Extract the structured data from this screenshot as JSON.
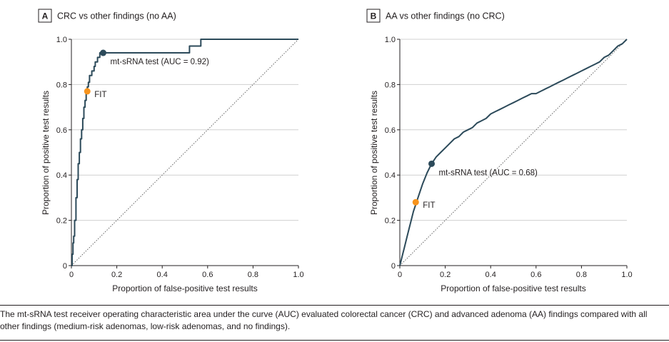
{
  "figure": {
    "caption": "The mt-sRNA test receiver operating characteristic area under the curve (AUC) evaluated colorectal cancer (CRC) and advanced adenoma (AA) findings compared with all other findings (medium-risk adenomas, low-risk adenomas, and no findings)."
  },
  "colors": {
    "roc_line": "#2c4a5a",
    "mt_srna_point": "#2c4a5a",
    "fit_point": "#f7941d",
    "diagonal": "#555555",
    "grid": "#d0d0d0"
  },
  "chart_data": [
    {
      "type": "line",
      "panel_letter": "A",
      "title": "CRC vs other findings (no AA)",
      "xlabel": "Proportion of false-positive test results",
      "ylabel": "Proportion of positive test results",
      "xlim": [
        0,
        1
      ],
      "ylim": [
        0,
        1
      ],
      "x_ticks": [
        "0",
        "0.2",
        "0.4",
        "0.6",
        "0.8",
        "1.0"
      ],
      "y_ticks": [
        "0",
        "0.2",
        "0.4",
        "0.6",
        "0.8",
        "1.0"
      ],
      "grid": "horizontal",
      "reference_line": "diagonal",
      "series": [
        {
          "name": "mt-sRNA test",
          "step": true,
          "x": [
            0,
            0.003,
            0.003,
            0.007,
            0.007,
            0.01,
            0.01,
            0.014,
            0.014,
            0.02,
            0.02,
            0.025,
            0.025,
            0.03,
            0.03,
            0.035,
            0.035,
            0.04,
            0.04,
            0.045,
            0.045,
            0.05,
            0.05,
            0.055,
            0.055,
            0.06,
            0.06,
            0.065,
            0.065,
            0.07,
            0.07,
            0.075,
            0.075,
            0.08,
            0.08,
            0.09,
            0.09,
            0.1,
            0.1,
            0.105,
            0.105,
            0.115,
            0.115,
            0.125,
            0.125,
            0.14,
            0.14,
            0.52,
            0.52,
            0.57,
            0.57,
            1.0
          ],
          "y": [
            0,
            0,
            0.05,
            0.05,
            0.1,
            0.1,
            0.13,
            0.13,
            0.2,
            0.2,
            0.3,
            0.3,
            0.38,
            0.38,
            0.45,
            0.45,
            0.5,
            0.5,
            0.56,
            0.56,
            0.6,
            0.6,
            0.65,
            0.65,
            0.7,
            0.7,
            0.73,
            0.73,
            0.76,
            0.76,
            0.79,
            0.79,
            0.81,
            0.81,
            0.84,
            0.84,
            0.86,
            0.86,
            0.88,
            0.88,
            0.9,
            0.9,
            0.92,
            0.92,
            0.94,
            0.94,
            0.94,
            0.94,
            0.97,
            0.97,
            1.0,
            1.0
          ]
        }
      ],
      "points": [
        {
          "name": "mt-sRNA test",
          "x": 0.14,
          "y": 0.94,
          "label": "mt-sRNA test (AUC = 0.92)",
          "color_key": "mt_srna_point"
        },
        {
          "name": "FIT",
          "x": 0.07,
          "y": 0.77,
          "label": "FIT",
          "color_key": "fit_point"
        }
      ]
    },
    {
      "type": "line",
      "panel_letter": "B",
      "title": "AA vs other findings (no CRC)",
      "xlabel": "Proportion of false-positive test results",
      "ylabel": "Proportion of positive test results",
      "xlim": [
        0,
        1
      ],
      "ylim": [
        0,
        1
      ],
      "x_ticks": [
        "0",
        "0.2",
        "0.4",
        "0.6",
        "0.8",
        "1.0"
      ],
      "y_ticks": [
        "0",
        "0.2",
        "0.4",
        "0.6",
        "0.8",
        "1.0"
      ],
      "grid": "horizontal",
      "reference_line": "diagonal",
      "series": [
        {
          "name": "mt-sRNA test",
          "step": false,
          "x": [
            0,
            0.01,
            0.02,
            0.03,
            0.04,
            0.05,
            0.06,
            0.07,
            0.08,
            0.09,
            0.1,
            0.12,
            0.14,
            0.16,
            0.18,
            0.2,
            0.22,
            0.24,
            0.26,
            0.28,
            0.3,
            0.32,
            0.34,
            0.36,
            0.38,
            0.4,
            0.42,
            0.44,
            0.46,
            0.48,
            0.5,
            0.52,
            0.54,
            0.56,
            0.58,
            0.6,
            0.62,
            0.64,
            0.66,
            0.68,
            0.7,
            0.72,
            0.74,
            0.76,
            0.78,
            0.8,
            0.82,
            0.84,
            0.86,
            0.88,
            0.9,
            0.92,
            0.94,
            0.96,
            0.98,
            1.0
          ],
          "y": [
            0,
            0.04,
            0.08,
            0.12,
            0.16,
            0.2,
            0.24,
            0.27,
            0.3,
            0.33,
            0.36,
            0.41,
            0.45,
            0.48,
            0.5,
            0.52,
            0.54,
            0.56,
            0.57,
            0.59,
            0.6,
            0.61,
            0.63,
            0.64,
            0.65,
            0.67,
            0.68,
            0.69,
            0.7,
            0.71,
            0.72,
            0.73,
            0.74,
            0.75,
            0.76,
            0.76,
            0.77,
            0.78,
            0.79,
            0.8,
            0.81,
            0.82,
            0.83,
            0.84,
            0.85,
            0.86,
            0.87,
            0.88,
            0.89,
            0.9,
            0.92,
            0.93,
            0.95,
            0.97,
            0.98,
            1.0
          ]
        }
      ],
      "points": [
        {
          "name": "mt-sRNA test",
          "x": 0.14,
          "y": 0.45,
          "label": "mt-sRNA test (AUC = 0.68)",
          "color_key": "mt_srna_point"
        },
        {
          "name": "FIT",
          "x": 0.07,
          "y": 0.28,
          "label": "FIT",
          "color_key": "fit_point"
        }
      ]
    }
  ]
}
